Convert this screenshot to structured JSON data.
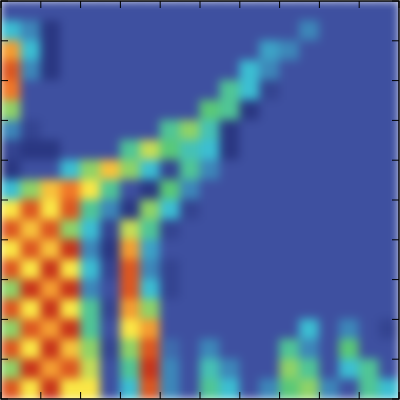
{
  "chart_data": {
    "type": "heatmap",
    "xlim": [
      0,
      10
    ],
    "ylim": [
      0,
      10
    ],
    "xticks": [
      0,
      1,
      2,
      3,
      4,
      5,
      6,
      7,
      8,
      9,
      10
    ],
    "yticks": [
      0,
      1,
      2,
      3,
      4,
      5,
      6,
      7,
      8,
      9,
      10
    ],
    "tick_labels": false,
    "color_range": [
      0,
      1
    ],
    "cells": [
      [
        0.2,
        0.2,
        0.2,
        0.2,
        0.2,
        0.2,
        0.2,
        0.2,
        0.2,
        0.2,
        0.2,
        0.2,
        0.2,
        0.2,
        0.2,
        0.2,
        0.2,
        0.2,
        0.2,
        0.2
      ],
      [
        0.4,
        0.3,
        0.1,
        0.2,
        0.2,
        0.2,
        0.2,
        0.2,
        0.2,
        0.2,
        0.2,
        0.2,
        0.2,
        0.2,
        0.2,
        0.3,
        0.2,
        0.2,
        0.2,
        0.2
      ],
      [
        0.8,
        0.4,
        0.1,
        0.2,
        0.2,
        0.2,
        0.2,
        0.2,
        0.2,
        0.2,
        0.2,
        0.2,
        0.2,
        0.35,
        0.3,
        0.2,
        0.2,
        0.2,
        0.2,
        0.2
      ],
      [
        0.9,
        0.3,
        0.1,
        0.2,
        0.2,
        0.2,
        0.2,
        0.2,
        0.2,
        0.2,
        0.2,
        0.2,
        0.4,
        0.3,
        0.2,
        0.2,
        0.2,
        0.2,
        0.2,
        0.2
      ],
      [
        0.85,
        0.2,
        0.2,
        0.2,
        0.2,
        0.2,
        0.2,
        0.2,
        0.2,
        0.2,
        0.2,
        0.5,
        0.4,
        0.15,
        0.2,
        0.2,
        0.2,
        0.2,
        0.2,
        0.2
      ],
      [
        0.6,
        0.2,
        0.2,
        0.2,
        0.2,
        0.2,
        0.2,
        0.2,
        0.2,
        0.2,
        0.55,
        0.5,
        0.1,
        0.2,
        0.2,
        0.2,
        0.2,
        0.2,
        0.2,
        0.2
      ],
      [
        0.3,
        0.15,
        0.2,
        0.2,
        0.2,
        0.2,
        0.2,
        0.2,
        0.5,
        0.6,
        0.45,
        0.1,
        0.2,
        0.2,
        0.2,
        0.2,
        0.2,
        0.2,
        0.2,
        0.2
      ],
      [
        0.15,
        0.1,
        0.1,
        0.2,
        0.2,
        0.2,
        0.5,
        0.65,
        0.55,
        0.45,
        0.4,
        0.1,
        0.2,
        0.2,
        0.2,
        0.2,
        0.2,
        0.2,
        0.2,
        0.2
      ],
      [
        0.1,
        0.2,
        0.2,
        0.4,
        0.6,
        0.75,
        0.6,
        0.4,
        0.15,
        0.5,
        0.3,
        0.2,
        0.2,
        0.2,
        0.2,
        0.2,
        0.2,
        0.2,
        0.2,
        0.2
      ],
      [
        0.4,
        0.6,
        0.75,
        0.85,
        0.7,
        0.5,
        0.2,
        0.1,
        0.55,
        0.3,
        0.2,
        0.2,
        0.2,
        0.2,
        0.2,
        0.2,
        0.2,
        0.2,
        0.2,
        0.2
      ],
      [
        0.7,
        0.9,
        0.7,
        0.9,
        0.5,
        0.3,
        0.1,
        0.6,
        0.4,
        0.15,
        0.2,
        0.2,
        0.2,
        0.2,
        0.2,
        0.2,
        0.2,
        0.2,
        0.2,
        0.2
      ],
      [
        0.9,
        0.75,
        0.9,
        0.6,
        0.4,
        0.15,
        0.65,
        0.5,
        0.15,
        0.2,
        0.2,
        0.2,
        0.2,
        0.2,
        0.2,
        0.2,
        0.2,
        0.2,
        0.2,
        0.2
      ],
      [
        0.7,
        0.9,
        0.75,
        0.95,
        0.3,
        0.1,
        0.8,
        0.35,
        0.2,
        0.2,
        0.2,
        0.2,
        0.2,
        0.2,
        0.2,
        0.2,
        0.2,
        0.2,
        0.2,
        0.2
      ],
      [
        0.9,
        0.7,
        0.95,
        0.7,
        0.4,
        0.15,
        0.9,
        0.3,
        0.15,
        0.2,
        0.2,
        0.2,
        0.2,
        0.2,
        0.2,
        0.2,
        0.2,
        0.2,
        0.2,
        0.2
      ],
      [
        0.6,
        0.95,
        0.8,
        0.95,
        0.3,
        0.2,
        0.9,
        0.4,
        0.15,
        0.2,
        0.2,
        0.2,
        0.2,
        0.2,
        0.2,
        0.2,
        0.2,
        0.2,
        0.2,
        0.2
      ],
      [
        0.9,
        0.7,
        0.95,
        0.7,
        0.5,
        0.15,
        0.8,
        0.6,
        0.2,
        0.2,
        0.2,
        0.2,
        0.2,
        0.2,
        0.2,
        0.2,
        0.2,
        0.2,
        0.2,
        0.2
      ],
      [
        0.6,
        0.9,
        0.8,
        0.95,
        0.5,
        0.2,
        0.7,
        0.8,
        0.2,
        0.2,
        0.2,
        0.2,
        0.2,
        0.2,
        0.2,
        0.4,
        0.2,
        0.3,
        0.2,
        0.15
      ],
      [
        0.9,
        0.7,
        0.95,
        0.75,
        0.6,
        0.15,
        0.6,
        0.9,
        0.25,
        0.2,
        0.3,
        0.2,
        0.2,
        0.2,
        0.5,
        0.3,
        0.2,
        0.55,
        0.2,
        0.2
      ],
      [
        0.6,
        0.95,
        0.8,
        0.9,
        0.65,
        0.2,
        0.5,
        0.95,
        0.3,
        0.2,
        0.45,
        0.3,
        0.2,
        0.2,
        0.6,
        0.5,
        0.2,
        0.4,
        0.5,
        0.2
      ],
      [
        0.9,
        0.7,
        0.95,
        0.7,
        0.7,
        0.2,
        0.4,
        0.9,
        0.3,
        0.2,
        0.5,
        0.4,
        0.2,
        0.3,
        0.55,
        0.6,
        0.3,
        0.2,
        0.5,
        0.4
      ]
    ]
  }
}
